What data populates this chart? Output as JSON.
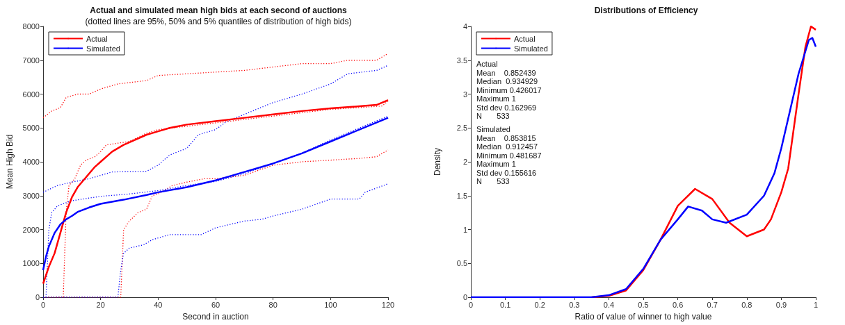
{
  "chart_data": [
    {
      "type": "line",
      "title": "Actual and simulated mean high bids at each second of auctions",
      "subtitle": "(dotted lines are 95%, 50% and 5% quantiles of distribution of high bids)",
      "xlabel": "Second in auction",
      "ylabel": "Mean High Bid",
      "xlim": [
        0,
        120
      ],
      "xticks": [
        0,
        20,
        40,
        60,
        80,
        100,
        120
      ],
      "ylim": [
        0,
        8000
      ],
      "yticks": [
        0,
        1000,
        2000,
        3000,
        4000,
        5000,
        6000,
        7000,
        8000
      ],
      "grid": false,
      "legend": "top left",
      "marker": "none",
      "series": [
        {
          "name": "Actual",
          "color": "#ff0000",
          "line_style": "solid",
          "x": [
            0,
            2,
            4,
            6,
            8,
            10,
            12,
            14,
            16,
            18,
            20,
            24,
            28,
            32,
            36,
            40,
            44,
            50,
            60,
            70,
            80,
            90,
            100,
            110,
            116,
            118,
            120
          ],
          "values": [
            400,
            900,
            1300,
            1900,
            2500,
            2950,
            3250,
            3450,
            3650,
            3850,
            4000,
            4300,
            4500,
            4650,
            4800,
            4900,
            5000,
            5100,
            5200,
            5300,
            5400,
            5500,
            5580,
            5640,
            5680,
            5750,
            5820
          ]
        },
        {
          "name": "Simulated",
          "color": "#0000ff",
          "line_style": "solid",
          "x": [
            0,
            1,
            2,
            4,
            6,
            8,
            10,
            12,
            16,
            20,
            28,
            36,
            40,
            50,
            60,
            70,
            80,
            90,
            100,
            110,
            120
          ],
          "values": [
            800,
            1200,
            1500,
            1900,
            2150,
            2300,
            2400,
            2520,
            2650,
            2760,
            2880,
            3020,
            3100,
            3250,
            3450,
            3700,
            3950,
            4250,
            4600,
            4950,
            5300
          ]
        },
        {
          "color": "#ff0000",
          "line_style": "dotted",
          "x": [
            0,
            3,
            6,
            8,
            12,
            16,
            20,
            26,
            36,
            40,
            50,
            60,
            70,
            80,
            90,
            100,
            106,
            116,
            120
          ],
          "values": [
            5300,
            5500,
            5600,
            5900,
            6000,
            6000,
            6150,
            6300,
            6400,
            6550,
            6600,
            6650,
            6700,
            6800,
            6900,
            6900,
            7000,
            7000,
            7200
          ]
        },
        {
          "color": "#ff0000",
          "line_style": "dotted",
          "x": [
            0,
            7,
            8,
            9,
            11,
            13,
            15,
            18,
            20,
            22,
            26,
            30,
            36,
            40,
            50,
            60,
            70,
            80,
            90,
            100,
            110,
            118,
            120
          ],
          "values": [
            0,
            0,
            2500,
            3300,
            3500,
            3900,
            4050,
            4150,
            4300,
            4500,
            4550,
            4600,
            4850,
            4950,
            5050,
            5150,
            5250,
            5350,
            5450,
            5550,
            5600,
            5650,
            5800
          ]
        },
        {
          "color": "#ff0000",
          "line_style": "dotted",
          "x": [
            0,
            27,
            28,
            30,
            33,
            36,
            38,
            40,
            45,
            50,
            56,
            60,
            70,
            80,
            90,
            100,
            110,
            116,
            120
          ],
          "values": [
            0,
            0,
            2000,
            2250,
            2500,
            2600,
            3000,
            3050,
            3300,
            3400,
            3500,
            3500,
            3600,
            3900,
            4000,
            4050,
            4100,
            4150,
            4350
          ]
        },
        {
          "color": "#0000ff",
          "line_style": "dotted",
          "x": [
            0,
            5,
            10,
            16,
            20,
            24,
            36,
            40,
            44,
            50,
            54,
            60,
            64,
            70,
            80,
            90,
            100,
            106,
            116,
            120
          ],
          "values": [
            3100,
            3300,
            3400,
            3500,
            3600,
            3700,
            3720,
            3900,
            4200,
            4400,
            4800,
            4950,
            5200,
            5400,
            5750,
            6000,
            6300,
            6600,
            6700,
            6850
          ]
        },
        {
          "color": "#0000ff",
          "line_style": "dotted",
          "x": [
            0,
            1,
            2,
            3,
            5,
            10,
            20,
            30,
            40,
            50,
            60,
            70,
            80,
            90,
            100,
            110,
            120
          ],
          "values": [
            0,
            0,
            2000,
            2500,
            2700,
            2850,
            2980,
            3050,
            3150,
            3300,
            3420,
            3650,
            3950,
            4250,
            4650,
            5000,
            5350
          ]
        },
        {
          "color": "#0000ff",
          "line_style": "dotted",
          "x": [
            0,
            26,
            27,
            28,
            30,
            35,
            38,
            44,
            55,
            60,
            70,
            76,
            80,
            90,
            100,
            110,
            112,
            120
          ],
          "values": [
            0,
            0,
            800,
            1300,
            1450,
            1550,
            1700,
            1850,
            1850,
            2050,
            2250,
            2300,
            2400,
            2600,
            2900,
            2900,
            3100,
            3350
          ]
        }
      ]
    },
    {
      "type": "line",
      "title": "Distributions of Efficiency",
      "xlabel": "Ratio of value of winner to high value",
      "ylabel": "Density",
      "xlim": [
        0,
        1
      ],
      "xticks": [
        0,
        0.1,
        0.2,
        0.3,
        0.4,
        0.5,
        0.6,
        0.7,
        0.8,
        0.9,
        1
      ],
      "ylim": [
        0,
        4
      ],
      "yticks": [
        0,
        0.5,
        1,
        1.5,
        2,
        2.5,
        3,
        3.5,
        4
      ],
      "grid": false,
      "legend": "top left",
      "marker": "none",
      "annotations": [
        "Actual\nMean    0.852439\nMedian  0.934929\nMinimum 0.426017\nMaximum 1\nStd dev 0.162969\nN       533",
        "Simulated\nMean    0.853815\nMedian  0.912457\nMinimum 0.481687\nMaximum 1\nStd dev 0.155616\nN       533"
      ],
      "series": [
        {
          "name": "Actual",
          "color": "#ff0000",
          "line_style": "solid",
          "x": [
            0.35,
            0.4,
            0.45,
            0.5,
            0.55,
            0.6,
            0.65,
            0.7,
            0.75,
            0.8,
            0.85,
            0.87,
            0.9,
            0.92,
            0.95,
            0.97,
            0.986,
            1
          ],
          "values": [
            0,
            0.02,
            0.1,
            0.4,
            0.85,
            1.35,
            1.6,
            1.45,
            1.1,
            0.9,
            1.0,
            1.15,
            1.55,
            1.9,
            3.0,
            3.7,
            4.0,
            3.95
          ]
        },
        {
          "name": "Simulated",
          "color": "#0000ff",
          "line_style": "solid",
          "x": [
            0,
            0.3,
            0.35,
            0.4,
            0.45,
            0.5,
            0.55,
            0.6,
            0.63,
            0.67,
            0.7,
            0.74,
            0.8,
            0.85,
            0.88,
            0.9,
            0.95,
            0.98,
            0.99,
            1
          ],
          "values": [
            0,
            0,
            0,
            0.03,
            0.12,
            0.42,
            0.85,
            1.15,
            1.34,
            1.28,
            1.15,
            1.1,
            1.22,
            1.5,
            1.83,
            2.2,
            3.3,
            3.8,
            3.83,
            3.7
          ]
        }
      ]
    }
  ]
}
